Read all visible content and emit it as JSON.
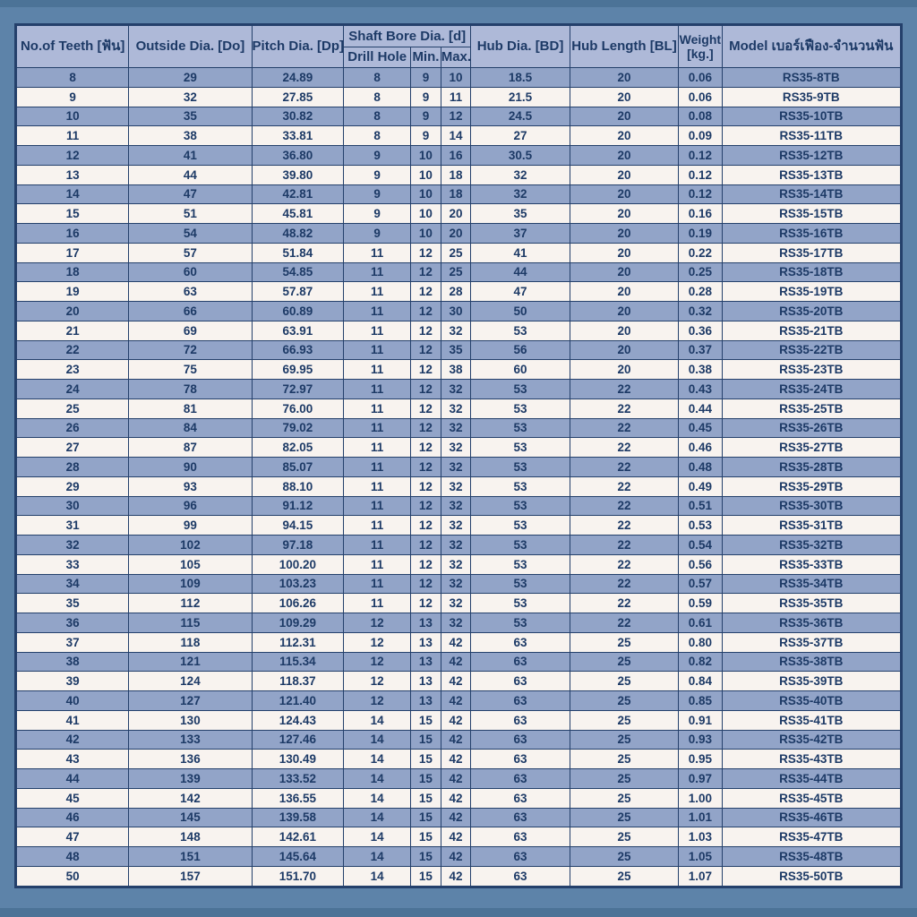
{
  "page": {
    "background_color": "#5d83a9",
    "edge_strip_color": "#4c7397",
    "grid_color": "#24406b",
    "header_bg": "#aeb9d8",
    "row_dark_bg": "#92a4c8",
    "row_light_bg": "#f8f3ef",
    "text_color": "#1d3a66"
  },
  "table": {
    "headers": {
      "teeth": "No.of Teeth [ฟัน]",
      "outside_dia": "Outside Dia. [Do]",
      "pitch_dia": "Pitch Dia. [Dp]",
      "shaft_bore_group": "Shaft Bore Dia. [d]",
      "drill_hole": "Drill Hole",
      "min": "Min.",
      "max": "Max.",
      "hub_dia": "Hub Dia. [BD]",
      "hub_length": "Hub Length [BL]",
      "weight_line1": "Weight",
      "weight_line2": "[kg.]",
      "model": "Model เบอร์เฟือง-จำนวนฟัน"
    },
    "col_keys": [
      "teeth",
      "outside_dia",
      "pitch_dia",
      "drill_hole",
      "min",
      "max",
      "hub_dia",
      "hub_length",
      "weight",
      "model"
    ],
    "rows": [
      [
        "8",
        "29",
        "24.89",
        "8",
        "9",
        "10",
        "18.5",
        "20",
        "0.06",
        "RS35-8TB"
      ],
      [
        "9",
        "32",
        "27.85",
        "8",
        "9",
        "11",
        "21.5",
        "20",
        "0.06",
        "RS35-9TB"
      ],
      [
        "10",
        "35",
        "30.82",
        "8",
        "9",
        "12",
        "24.5",
        "20",
        "0.08",
        "RS35-10TB"
      ],
      [
        "11",
        "38",
        "33.81",
        "8",
        "9",
        "14",
        "27",
        "20",
        "0.09",
        "RS35-11TB"
      ],
      [
        "12",
        "41",
        "36.80",
        "9",
        "10",
        "16",
        "30.5",
        "20",
        "0.12",
        "RS35-12TB"
      ],
      [
        "13",
        "44",
        "39.80",
        "9",
        "10",
        "18",
        "32",
        "20",
        "0.12",
        "RS35-13TB"
      ],
      [
        "14",
        "47",
        "42.81",
        "9",
        "10",
        "18",
        "32",
        "20",
        "0.12",
        "RS35-14TB"
      ],
      [
        "15",
        "51",
        "45.81",
        "9",
        "10",
        "20",
        "35",
        "20",
        "0.16",
        "RS35-15TB"
      ],
      [
        "16",
        "54",
        "48.82",
        "9",
        "10",
        "20",
        "37",
        "20",
        "0.19",
        "RS35-16TB"
      ],
      [
        "17",
        "57",
        "51.84",
        "11",
        "12",
        "25",
        "41",
        "20",
        "0.22",
        "RS35-17TB"
      ],
      [
        "18",
        "60",
        "54.85",
        "11",
        "12",
        "25",
        "44",
        "20",
        "0.25",
        "RS35-18TB"
      ],
      [
        "19",
        "63",
        "57.87",
        "11",
        "12",
        "28",
        "47",
        "20",
        "0.28",
        "RS35-19TB"
      ],
      [
        "20",
        "66",
        "60.89",
        "11",
        "12",
        "30",
        "50",
        "20",
        "0.32",
        "RS35-20TB"
      ],
      [
        "21",
        "69",
        "63.91",
        "11",
        "12",
        "32",
        "53",
        "20",
        "0.36",
        "RS35-21TB"
      ],
      [
        "22",
        "72",
        "66.93",
        "11",
        "12",
        "35",
        "56",
        "20",
        "0.37",
        "RS35-22TB"
      ],
      [
        "23",
        "75",
        "69.95",
        "11",
        "12",
        "38",
        "60",
        "20",
        "0.38",
        "RS35-23TB"
      ],
      [
        "24",
        "78",
        "72.97",
        "11",
        "12",
        "32",
        "53",
        "22",
        "0.43",
        "RS35-24TB"
      ],
      [
        "25",
        "81",
        "76.00",
        "11",
        "12",
        "32",
        "53",
        "22",
        "0.44",
        "RS35-25TB"
      ],
      [
        "26",
        "84",
        "79.02",
        "11",
        "12",
        "32",
        "53",
        "22",
        "0.45",
        "RS35-26TB"
      ],
      [
        "27",
        "87",
        "82.05",
        "11",
        "12",
        "32",
        "53",
        "22",
        "0.46",
        "RS35-27TB"
      ],
      [
        "28",
        "90",
        "85.07",
        "11",
        "12",
        "32",
        "53",
        "22",
        "0.48",
        "RS35-28TB"
      ],
      [
        "29",
        "93",
        "88.10",
        "11",
        "12",
        "32",
        "53",
        "22",
        "0.49",
        "RS35-29TB"
      ],
      [
        "30",
        "96",
        "91.12",
        "11",
        "12",
        "32",
        "53",
        "22",
        "0.51",
        "RS35-30TB"
      ],
      [
        "31",
        "99",
        "94.15",
        "11",
        "12",
        "32",
        "53",
        "22",
        "0.53",
        "RS35-31TB"
      ],
      [
        "32",
        "102",
        "97.18",
        "11",
        "12",
        "32",
        "53",
        "22",
        "0.54",
        "RS35-32TB"
      ],
      [
        "33",
        "105",
        "100.20",
        "11",
        "12",
        "32",
        "53",
        "22",
        "0.56",
        "RS35-33TB"
      ],
      [
        "34",
        "109",
        "103.23",
        "11",
        "12",
        "32",
        "53",
        "22",
        "0.57",
        "RS35-34TB"
      ],
      [
        "35",
        "112",
        "106.26",
        "11",
        "12",
        "32",
        "53",
        "22",
        "0.59",
        "RS35-35TB"
      ],
      [
        "36",
        "115",
        "109.29",
        "12",
        "13",
        "32",
        "53",
        "22",
        "0.61",
        "RS35-36TB"
      ],
      [
        "37",
        "118",
        "112.31",
        "12",
        "13",
        "42",
        "63",
        "25",
        "0.80",
        "RS35-37TB"
      ],
      [
        "38",
        "121",
        "115.34",
        "12",
        "13",
        "42",
        "63",
        "25",
        "0.82",
        "RS35-38TB"
      ],
      [
        "39",
        "124",
        "118.37",
        "12",
        "13",
        "42",
        "63",
        "25",
        "0.84",
        "RS35-39TB"
      ],
      [
        "40",
        "127",
        "121.40",
        "12",
        "13",
        "42",
        "63",
        "25",
        "0.85",
        "RS35-40TB"
      ],
      [
        "41",
        "130",
        "124.43",
        "14",
        "15",
        "42",
        "63",
        "25",
        "0.91",
        "RS35-41TB"
      ],
      [
        "42",
        "133",
        "127.46",
        "14",
        "15",
        "42",
        "63",
        "25",
        "0.93",
        "RS35-42TB"
      ],
      [
        "43",
        "136",
        "130.49",
        "14",
        "15",
        "42",
        "63",
        "25",
        "0.95",
        "RS35-43TB"
      ],
      [
        "44",
        "139",
        "133.52",
        "14",
        "15",
        "42",
        "63",
        "25",
        "0.97",
        "RS35-44TB"
      ],
      [
        "45",
        "142",
        "136.55",
        "14",
        "15",
        "42",
        "63",
        "25",
        "1.00",
        "RS35-45TB"
      ],
      [
        "46",
        "145",
        "139.58",
        "14",
        "15",
        "42",
        "63",
        "25",
        "1.01",
        "RS35-46TB"
      ],
      [
        "47",
        "148",
        "142.61",
        "14",
        "15",
        "42",
        "63",
        "25",
        "1.03",
        "RS35-47TB"
      ],
      [
        "48",
        "151",
        "145.64",
        "14",
        "15",
        "42",
        "63",
        "25",
        "1.05",
        "RS35-48TB"
      ],
      [
        "50",
        "157",
        "151.70",
        "14",
        "15",
        "42",
        "63",
        "25",
        "1.07",
        "RS35-50TB"
      ]
    ]
  }
}
